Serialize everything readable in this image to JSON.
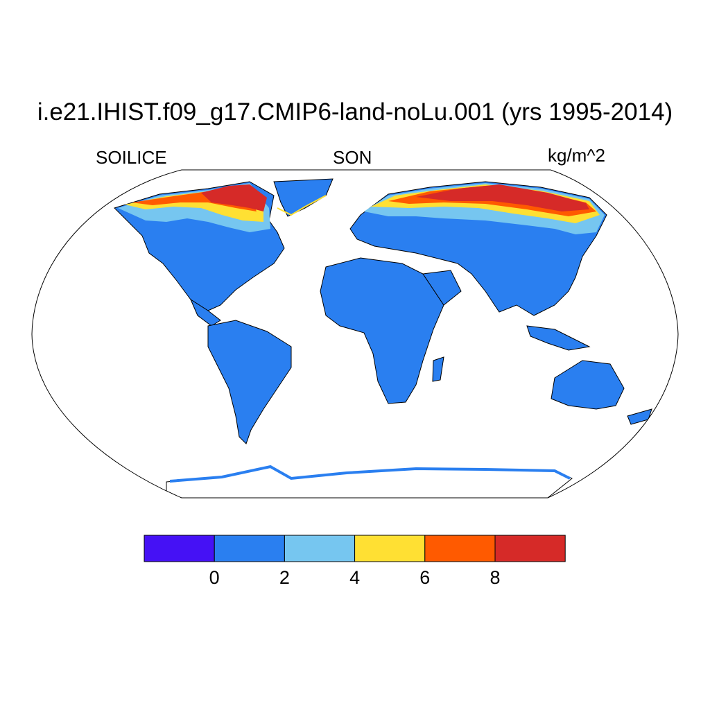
{
  "title": "i.e21.IHIST.f09_g17.CMIP6-land-noLu.001 (yrs 1995-2014)",
  "variable": "SOILICE",
  "season": "SON",
  "units": "kg/m^2",
  "projection": "robinson",
  "colorbar": {
    "colors": [
      "#4511f5",
      "#2a7ff0",
      "#76c6f0",
      "#ffe033",
      "#ff5a00",
      "#d62a28"
    ],
    "tick_labels": [
      "0",
      "2",
      "4",
      "6",
      "8"
    ],
    "levels": [
      0,
      2,
      4,
      6,
      8
    ]
  },
  "map_colors": {
    "land_base": "#2a7ff0",
    "high_lat_band": "#76c6f0",
    "mid_band": "#ffe033",
    "high_values": "#d62a28",
    "orange_values": "#ff5a00"
  }
}
